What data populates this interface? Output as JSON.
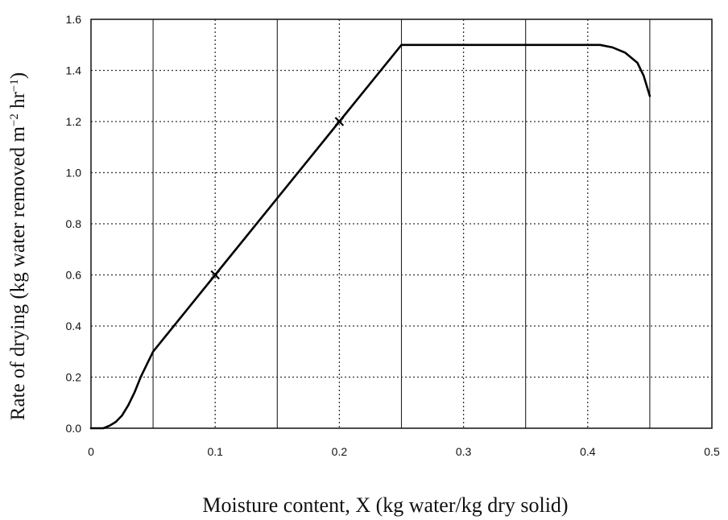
{
  "chart_data": {
    "type": "line",
    "xlabel": "Moisture content, X (kg water/kg dry solid)",
    "ylabel": {
      "main": "Rate of drying (kg water removed m",
      "sup1": "−2",
      "mid": " hr",
      "sup2": "−1",
      "end": ")"
    },
    "xlim": [
      0,
      0.5
    ],
    "ylim": [
      0,
      1.6
    ],
    "x_ticks": [
      {
        "value": 0,
        "label": "0"
      },
      {
        "value": 0.1,
        "label": "0.1"
      },
      {
        "value": 0.2,
        "label": "0.2"
      },
      {
        "value": 0.3,
        "label": "0.3"
      },
      {
        "value": 0.4,
        "label": "0.4"
      },
      {
        "value": 0.5,
        "label": "0.5"
      }
    ],
    "y_ticks": [
      {
        "value": 0,
        "label": "0.0"
      },
      {
        "value": 0.2,
        "label": "0.2"
      },
      {
        "value": 0.4,
        "label": "0.4"
      },
      {
        "value": 0.6,
        "label": "0.6"
      },
      {
        "value": 0.8,
        "label": "0.8"
      },
      {
        "value": 1.0,
        "label": "1.0"
      },
      {
        "value": 1.2,
        "label": "1.2"
      },
      {
        "value": 1.4,
        "label": "1.4"
      },
      {
        "value": 1.6,
        "label": "1.6"
      }
    ],
    "grid": {
      "x_solid_at": [
        0.05,
        0.15,
        0.25,
        0.35,
        0.45
      ],
      "x_dotted_at": [
        0.1,
        0.2,
        0.3,
        0.4
      ],
      "y_dotted_at": [
        0.2,
        0.4,
        0.6,
        0.8,
        1.0,
        1.2,
        1.4
      ]
    },
    "series": [
      {
        "x": [
          0,
          0.01,
          0.015,
          0.02,
          0.025,
          0.03,
          0.035,
          0.04,
          0.045,
          0.05,
          0.1,
          0.2,
          0.25,
          0.3,
          0.35,
          0.4,
          0.41,
          0.42,
          0.43,
          0.44,
          0.445,
          0.45
        ],
        "y": [
          0.0,
          0.0,
          0.01,
          0.025,
          0.05,
          0.09,
          0.14,
          0.2,
          0.25,
          0.3,
          0.6,
          1.2,
          1.5,
          1.5,
          1.5,
          1.5,
          1.5,
          1.49,
          1.47,
          1.43,
          1.38,
          1.3
        ]
      }
    ],
    "markers": [
      {
        "x": 0.1,
        "y": 0.6
      },
      {
        "x": 0.2,
        "y": 1.2
      }
    ]
  }
}
